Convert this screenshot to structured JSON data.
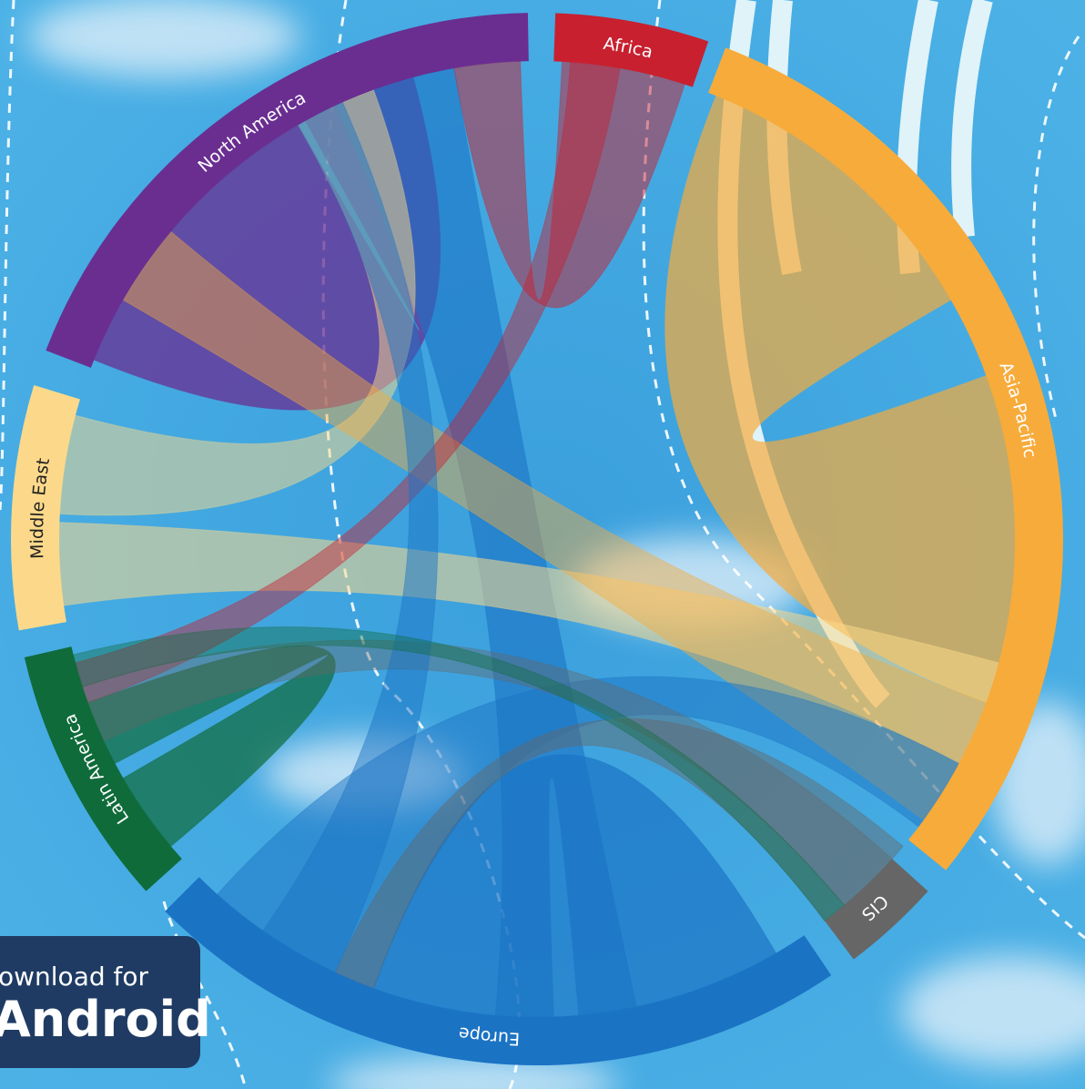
{
  "nodes": [
    {
      "label": "North America"
    },
    {
      "label": "Africa"
    },
    {
      "label": "Asia-Pacific"
    },
    {
      "label": "CIS"
    },
    {
      "label": "Europe"
    },
    {
      "label": "Latin America"
    },
    {
      "label": "Middle East"
    }
  ],
  "button": {
    "line1": "ownload for",
    "line2": "Android"
  }
}
